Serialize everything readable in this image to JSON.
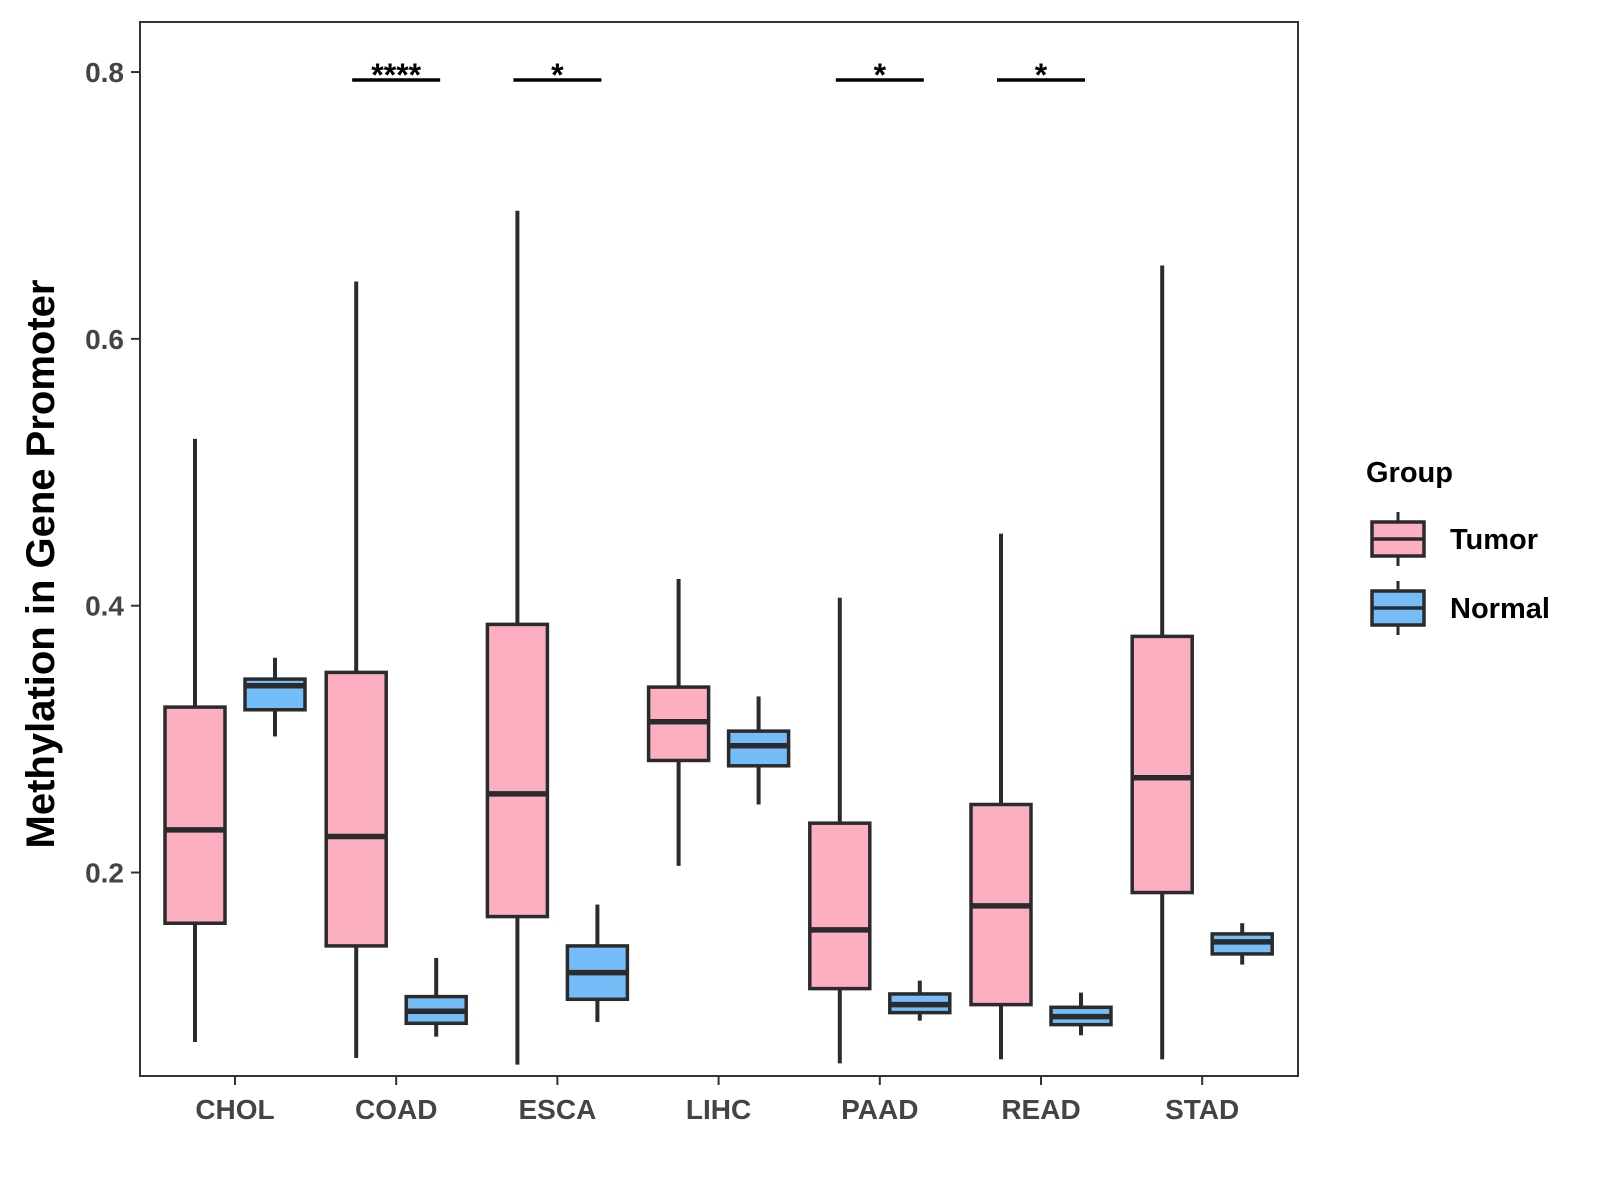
{
  "chart_data": {
    "type": "boxplot",
    "title": "",
    "xlabel": "",
    "ylabel": "Methylation in Gene Promoter",
    "ylim": [
      0.0475,
      0.8375
    ],
    "yticks": [
      "0.2",
      "0.4",
      "0.6",
      "0.8"
    ],
    "categories": [
      "CHOL",
      "COAD",
      "ESCA",
      "LIHC",
      "PAAD",
      "READ",
      "STAD"
    ],
    "grid": false,
    "legend": {
      "title": "Group",
      "position": "right"
    },
    "series": [
      {
        "name": "Tumor",
        "color": "#FCAFC1",
        "boxes": [
          {
            "min": 0.073,
            "q1": 0.162,
            "median": 0.232,
            "q3": 0.324,
            "max": 0.525
          },
          {
            "min": 0.061,
            "q1": 0.145,
            "median": 0.227,
            "q3": 0.35,
            "max": 0.643
          },
          {
            "min": 0.056,
            "q1": 0.167,
            "median": 0.259,
            "q3": 0.386,
            "max": 0.696
          },
          {
            "min": 0.205,
            "q1": 0.284,
            "median": 0.313,
            "q3": 0.339,
            "max": 0.42
          },
          {
            "min": 0.057,
            "q1": 0.113,
            "median": 0.157,
            "q3": 0.237,
            "max": 0.406
          },
          {
            "min": 0.06,
            "q1": 0.101,
            "median": 0.175,
            "q3": 0.251,
            "max": 0.454
          },
          {
            "min": 0.06,
            "q1": 0.185,
            "median": 0.271,
            "q3": 0.377,
            "max": 0.655
          }
        ]
      },
      {
        "name": "Normal",
        "color": "#74BDF8",
        "boxes": [
          {
            "min": 0.302,
            "q1": 0.322,
            "median": 0.34,
            "q3": 0.345,
            "max": 0.361
          },
          {
            "min": 0.077,
            "q1": 0.087,
            "median": 0.096,
            "q3": 0.107,
            "max": 0.136
          },
          {
            "min": 0.088,
            "q1": 0.105,
            "median": 0.125,
            "q3": 0.145,
            "max": 0.176
          },
          {
            "min": 0.251,
            "q1": 0.28,
            "median": 0.295,
            "q3": 0.306,
            "max": 0.332
          },
          {
            "min": 0.089,
            "q1": 0.095,
            "median": 0.101,
            "q3": 0.109,
            "max": 0.119
          },
          {
            "min": 0.078,
            "q1": 0.086,
            "median": 0.092,
            "q3": 0.099,
            "max": 0.11
          },
          {
            "min": 0.131,
            "q1": 0.139,
            "median": 0.148,
            "q3": 0.154,
            "max": 0.162
          }
        ]
      }
    ],
    "significance": [
      {
        "category": "CHOL",
        "label": ""
      },
      {
        "category": "COAD",
        "label": "****"
      },
      {
        "category": "ESCA",
        "label": "*"
      },
      {
        "category": "LIHC",
        "label": ""
      },
      {
        "category": "PAAD",
        "label": "*"
      },
      {
        "category": "READ",
        "label": "*"
      },
      {
        "category": "STAD",
        "label": ""
      }
    ],
    "significance_level": 0.794
  }
}
